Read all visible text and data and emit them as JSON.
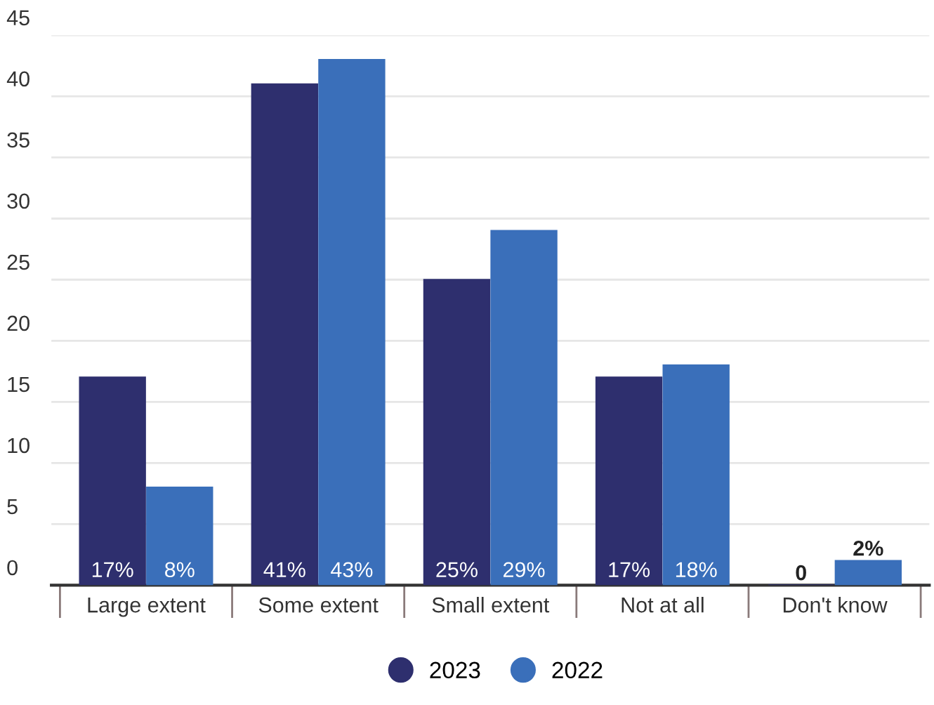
{
  "chart_data": {
    "type": "bar",
    "categories": [
      "Large extent",
      "Some extent",
      "Small extent",
      "Not at all",
      "Don't know"
    ],
    "series": [
      {
        "name": "2023",
        "color": "#2e2f6e",
        "values": [
          17,
          41,
          25,
          17,
          0
        ],
        "value_labels": [
          "17%",
          "41%",
          "25%",
          "17%",
          "0"
        ]
      },
      {
        "name": "2022",
        "color": "#3a6fba",
        "values": [
          8,
          43,
          29,
          18,
          2
        ],
        "value_labels": [
          "8%",
          "43%",
          "29%",
          "18%",
          "2%"
        ]
      }
    ],
    "ylim": [
      0,
      45
    ],
    "yticks": [
      0,
      5,
      10,
      15,
      20,
      25,
      30,
      35,
      40,
      45
    ],
    "grid": "y",
    "legend": "bottom"
  }
}
